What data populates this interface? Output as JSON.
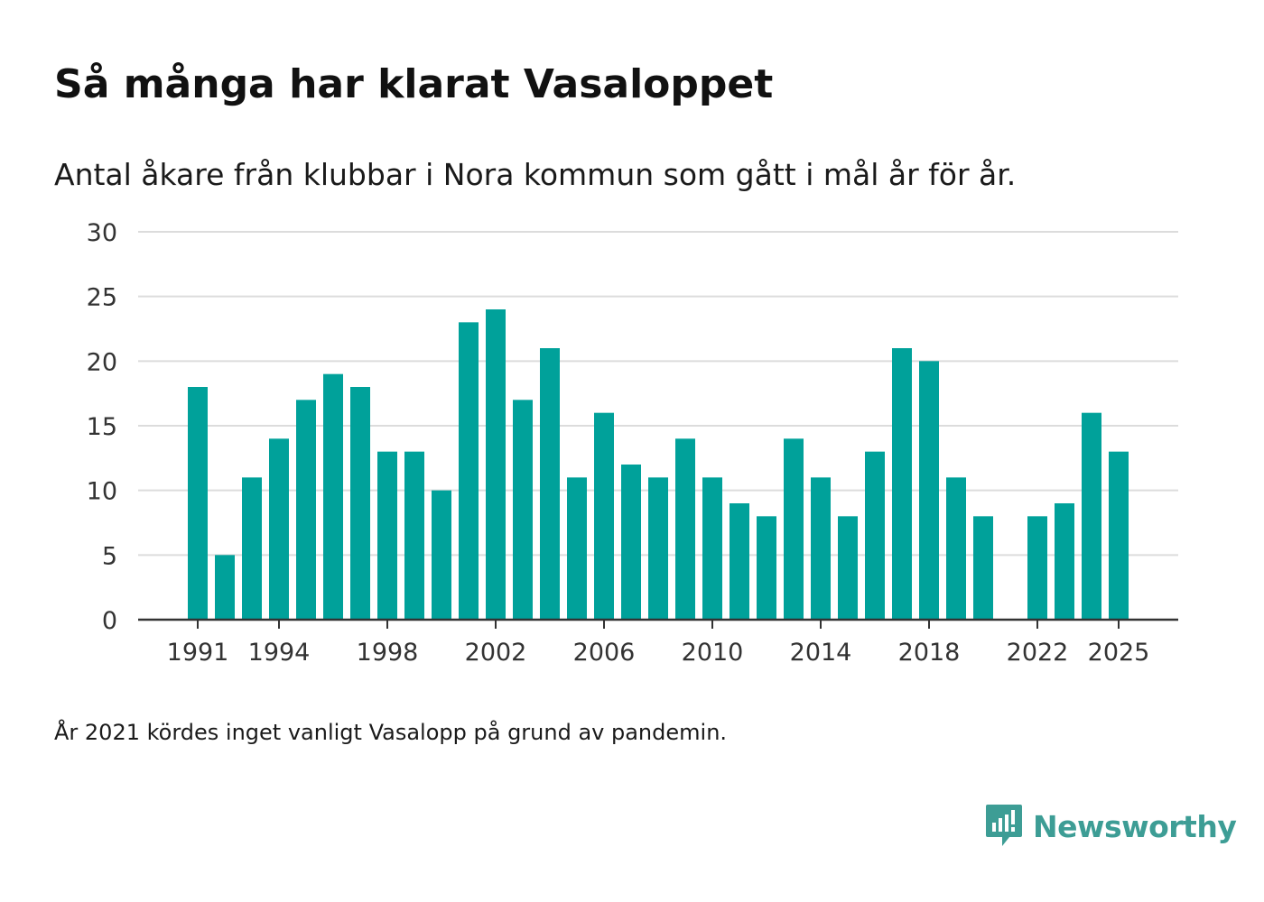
{
  "chart_data": {
    "type": "bar",
    "title": "Så många har klarat Vasaloppet",
    "subtitle": "Antal åkare från klubbar i Nora kommun som gått i mål år för år.",
    "note": "År 2021 kördes inget vanligt Vasalopp på grund av pandemin.",
    "xlabel": "",
    "ylabel": "",
    "ylim": [
      0,
      30
    ],
    "yticks": [
      0,
      5,
      10,
      15,
      20,
      25,
      30
    ],
    "xticks": [
      1991,
      1994,
      1998,
      2002,
      2006,
      2010,
      2014,
      2018,
      2022,
      2025
    ],
    "grid": true,
    "bar_color": "#00a19a",
    "categories": [
      1991,
      1992,
      1993,
      1994,
      1995,
      1996,
      1997,
      1998,
      1999,
      2000,
      2001,
      2002,
      2003,
      2004,
      2005,
      2006,
      2007,
      2008,
      2009,
      2010,
      2011,
      2012,
      2013,
      2014,
      2015,
      2016,
      2017,
      2018,
      2019,
      2020,
      2021,
      2022,
      2023,
      2024,
      2025
    ],
    "values": [
      18,
      5,
      11,
      14,
      17,
      19,
      18,
      13,
      13,
      10,
      23,
      24,
      17,
      21,
      11,
      16,
      12,
      11,
      14,
      11,
      9,
      8,
      14,
      11,
      8,
      13,
      21,
      20,
      11,
      8,
      null,
      8,
      9,
      16,
      13
    ]
  },
  "brand": {
    "name": "Newsworthy",
    "color": "#3d9d95"
  }
}
